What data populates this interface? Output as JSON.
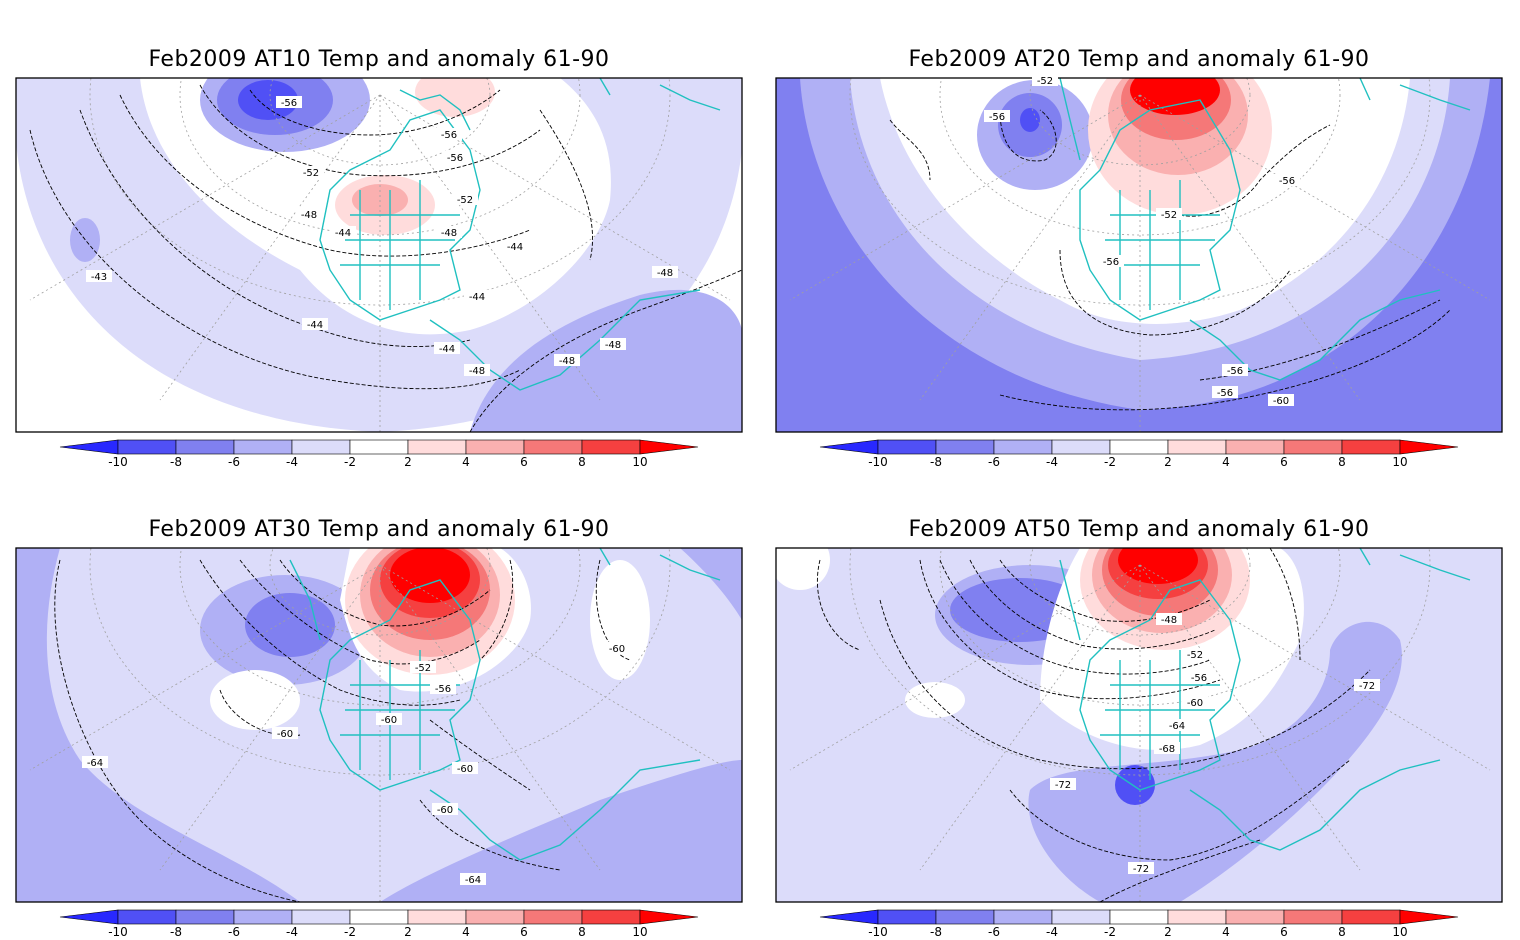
{
  "panels": [
    {
      "title": "Feb2009 AT10 Temp and anomaly 61-90",
      "contour_labels": [
        "-56",
        "-56",
        "-56",
        "-52",
        "-52",
        "-48",
        "-48",
        "-44",
        "-44",
        "-44",
        "-44",
        "-43",
        "-44",
        "-48",
        "-48",
        "-48",
        "-48"
      ]
    },
    {
      "title": "Feb2009 AT20 Temp and anomaly 61-90",
      "contour_labels": [
        "-52",
        "-56",
        "-56",
        "-52",
        "-56",
        "-56",
        "-56",
        "-60"
      ]
    },
    {
      "title": "Feb2009 AT30 Temp and anomaly 61-90",
      "contour_labels": [
        "-52",
        "-56",
        "-60",
        "-60",
        "-60",
        "-60",
        "-64",
        "-64",
        "-60"
      ]
    },
    {
      "title": "Feb2009 AT50 Temp and anomaly 61-90",
      "contour_labels": [
        "-48",
        "-52",
        "-56",
        "-60",
        "-64",
        "-68",
        "-72",
        "-72",
        "-72"
      ]
    }
  ],
  "colorbar": {
    "tick_labels": [
      "-10",
      "-8",
      "-6",
      "-4",
      "-2",
      "2",
      "4",
      "6",
      "8",
      "10"
    ],
    "colors": [
      "#2828ff",
      "#5050f5",
      "#8080f0",
      "#b0b0f5",
      "#dcdcfa",
      "#ffffff",
      "#ffdcdc",
      "#fab0b0",
      "#f57878",
      "#f54040",
      "#ff0000"
    ]
  },
  "colors": {
    "coastline": "#20c0c0",
    "contour": "#000000",
    "grid": "#a0a0a0"
  }
}
